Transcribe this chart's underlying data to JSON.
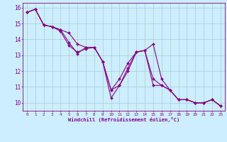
{
  "xlabel": "Windchill (Refroidissement éolien,°C)",
  "bg_color": "#cceeff",
  "line_color": "#880088",
  "grid_color": "#aacccc",
  "xlim": [
    -0.5,
    23.5
  ],
  "ylim": [
    9.5,
    16.3
  ],
  "yticks": [
    10,
    11,
    12,
    13,
    14,
    15,
    16
  ],
  "xticks": [
    0,
    1,
    2,
    3,
    4,
    5,
    6,
    7,
    8,
    9,
    10,
    11,
    12,
    13,
    14,
    15,
    16,
    17,
    18,
    19,
    20,
    21,
    22,
    23
  ],
  "series": [
    [
      15.7,
      15.9,
      14.9,
      14.8,
      14.6,
      14.4,
      13.7,
      13.5,
      13.5,
      12.6,
      10.3,
      11.1,
      12.0,
      13.2,
      13.3,
      13.7,
      11.5,
      10.8,
      10.2,
      10.2,
      10.0,
      10.0,
      10.2,
      9.8
    ],
    [
      15.7,
      15.9,
      14.9,
      14.8,
      14.6,
      13.8,
      13.1,
      13.5,
      13.5,
      12.6,
      10.8,
      11.1,
      12.2,
      13.2,
      13.3,
      11.1,
      11.1,
      10.8,
      10.2,
      10.2,
      10.0,
      10.0,
      10.2,
      9.8
    ],
    [
      15.7,
      15.9,
      14.9,
      14.8,
      14.5,
      13.6,
      13.2,
      13.4,
      13.5,
      12.6,
      10.8,
      11.5,
      12.5,
      13.2,
      13.3,
      11.5,
      11.1,
      10.8,
      10.2,
      10.2,
      10.0,
      10.0,
      10.2,
      9.8
    ]
  ],
  "xlabel_fontsize": 5.0,
  "ytick_fontsize": 5.5,
  "xtick_fontsize": 4.2,
  "linewidth": 0.8,
  "markersize": 2.0
}
